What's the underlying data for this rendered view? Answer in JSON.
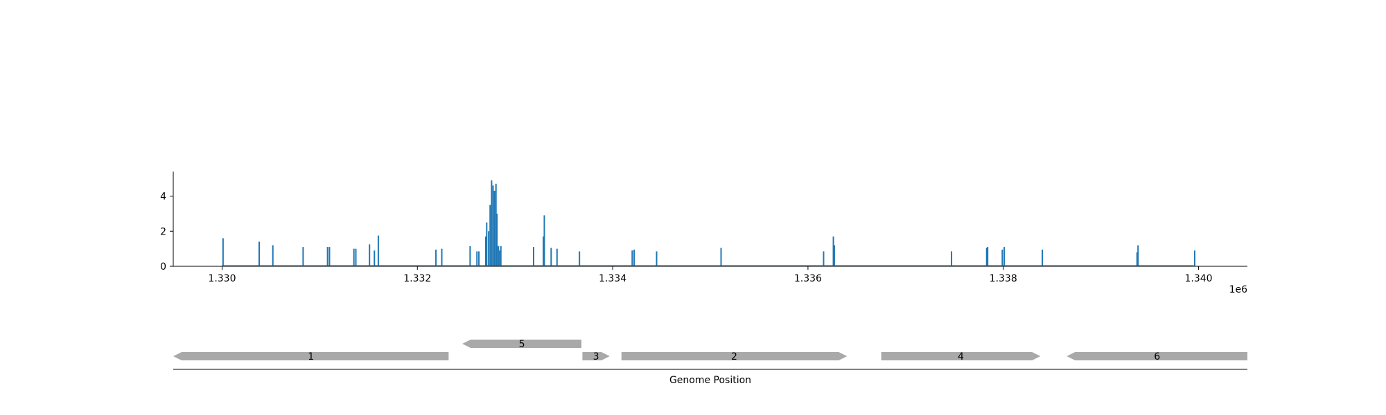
{
  "chart_data": [
    {
      "type": "bar",
      "subtype": "coverage-spikes",
      "x_offset_label": "1e6",
      "xlim": [
        1329500,
        1340500
      ],
      "ylim": [
        0,
        5.4
      ],
      "x_ticks": [
        {
          "value": 1330000,
          "label": "1.330"
        },
        {
          "value": 1332000,
          "label": "1.332"
        },
        {
          "value": 1334000,
          "label": "1.334"
        },
        {
          "value": 1336000,
          "label": "1.336"
        },
        {
          "value": 1338000,
          "label": "1.338"
        },
        {
          "value": 1340000,
          "label": "1.340"
        }
      ],
      "y_ticks": [
        {
          "value": 0,
          "label": "0"
        },
        {
          "value": 2,
          "label": "2"
        },
        {
          "value": 4,
          "label": "4"
        }
      ],
      "baseline_range": [
        1330000,
        1339950
      ],
      "color": "#1f77b4",
      "grid": false,
      "spikes": [
        [
          1330010,
          1.6
        ],
        [
          1330380,
          1.4
        ],
        [
          1330520,
          1.2
        ],
        [
          1330830,
          1.1
        ],
        [
          1331080,
          1.1
        ],
        [
          1331100,
          1.1
        ],
        [
          1331350,
          1.0
        ],
        [
          1331370,
          1.0
        ],
        [
          1331510,
          1.25
        ],
        [
          1331560,
          0.9
        ],
        [
          1331600,
          1.75
        ],
        [
          1332190,
          0.95
        ],
        [
          1332250,
          1.0
        ],
        [
          1332540,
          1.15
        ],
        [
          1332610,
          0.85
        ],
        [
          1332630,
          0.85
        ],
        [
          1332700,
          1.7
        ],
        [
          1332710,
          2.5
        ],
        [
          1332730,
          2.0
        ],
        [
          1332745,
          3.5
        ],
        [
          1332760,
          4.9
        ],
        [
          1332775,
          4.6
        ],
        [
          1332790,
          4.3
        ],
        [
          1332805,
          4.7
        ],
        [
          1332815,
          3.0
        ],
        [
          1332830,
          1.15
        ],
        [
          1332840,
          0.9
        ],
        [
          1332855,
          1.15
        ],
        [
          1333190,
          1.1
        ],
        [
          1333290,
          1.7
        ],
        [
          1333300,
          2.9
        ],
        [
          1333370,
          1.05
        ],
        [
          1333430,
          1.0
        ],
        [
          1333660,
          0.85
        ],
        [
          1334200,
          0.9
        ],
        [
          1334220,
          0.95
        ],
        [
          1334450,
          0.85
        ],
        [
          1335110,
          1.05
        ],
        [
          1336160,
          0.85
        ],
        [
          1336260,
          1.7
        ],
        [
          1336270,
          1.2
        ],
        [
          1337470,
          0.85
        ],
        [
          1337830,
          1.05
        ],
        [
          1337840,
          1.1
        ],
        [
          1337990,
          0.95
        ],
        [
          1338010,
          1.1
        ],
        [
          1338400,
          0.95
        ],
        [
          1339370,
          0.8
        ],
        [
          1339380,
          1.2
        ],
        [
          1339960,
          0.9
        ]
      ]
    },
    {
      "type": "gene-track",
      "xlabel": "Genome Position",
      "color": "#a9a9a9",
      "genes": [
        {
          "label": "1",
          "start": 1329500,
          "end": 1332320,
          "strand": "-",
          "row": 0
        },
        {
          "label": "5",
          "start": 1332460,
          "end": 1333680,
          "strand": "-",
          "row": 1
        },
        {
          "label": "3",
          "start": 1333690,
          "end": 1333970,
          "strand": "+",
          "row": 0
        },
        {
          "label": "2",
          "start": 1334090,
          "end": 1336400,
          "strand": "+",
          "row": 0
        },
        {
          "label": "4",
          "start": 1336750,
          "end": 1338380,
          "strand": "+",
          "row": 0
        },
        {
          "label": "6",
          "start": 1338650,
          "end": 1340500,
          "strand": "-",
          "row": 0
        }
      ]
    }
  ]
}
